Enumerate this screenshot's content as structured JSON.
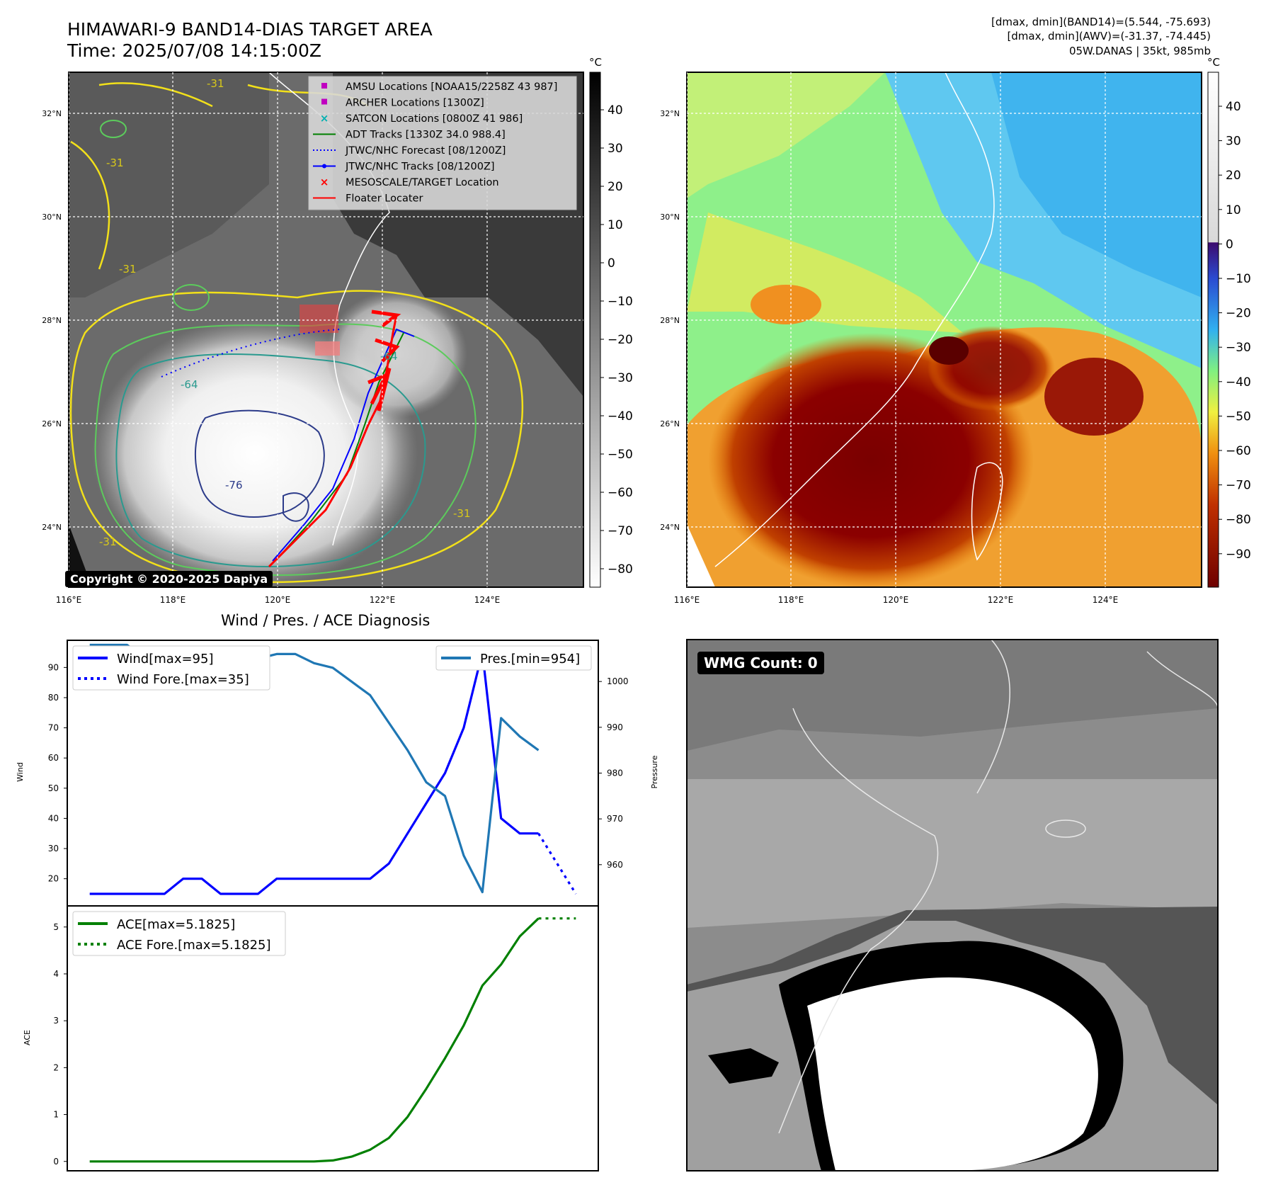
{
  "header": {
    "title_line1": "HIMAWARI-9 BAND14-DIAS TARGET AREA",
    "title_line2": "Time: 2025/07/08 14:15:00Z",
    "stat_line1": "[dmax, dmin](BAND14)=(5.544, -75.693)",
    "stat_line2": "[dmax, dmin](AWV)=(-31.37, -74.445)",
    "stat_line3": "05W.DANAS | 35kt, 985mb"
  },
  "map": {
    "lat_labels": [
      "32°N",
      "30°N",
      "28°N",
      "26°N",
      "24°N"
    ],
    "lon_labels": [
      "116°E",
      "118°E",
      "120°E",
      "122°E",
      "124°E"
    ],
    "copyright": "Copyright © 2020-2025 Dapiya",
    "contour_labels": [
      "-31",
      "-31",
      "-31",
      "-64",
      "-64",
      "-76",
      "-31",
      "-31"
    ],
    "legend": [
      {
        "label": "AMSU Locations [NOAA15/2258Z 43 987]",
        "marker": "square",
        "color": "#c000c0"
      },
      {
        "label": "ARCHER Locations [1300Z]",
        "marker": "square",
        "color": "#c000c0"
      },
      {
        "label": "SATCON Locations [0800Z 41 986]",
        "marker": "x",
        "color": "#00b0b0"
      },
      {
        "label": "ADT Tracks [1330Z 34.0 988.4]",
        "marker": "line",
        "color": "#008000"
      },
      {
        "label": "JTWC/NHC Forecast [08/1200Z]",
        "marker": "dotted",
        "color": "#0000ff"
      },
      {
        "label": "JTWC/NHC Tracks [08/1200Z]",
        "marker": "line-dot",
        "color": "#0000ff"
      },
      {
        "label": "MESOSCALE/TARGET Location",
        "marker": "x",
        "color": "#ff0000"
      },
      {
        "label": "Floater Locater",
        "marker": "line",
        "color": "#ff0000"
      }
    ]
  },
  "colorbar_left": {
    "unit": "°C",
    "ticks": [
      "40",
      "30",
      "20",
      "10",
      "0",
      "−10",
      "−20",
      "−30",
      "−40",
      "−50",
      "−60",
      "−70",
      "−80"
    ]
  },
  "colorbar_right": {
    "unit": "°C",
    "ticks": [
      "40",
      "30",
      "20",
      "10",
      "0",
      "−10",
      "−20",
      "−30",
      "−40",
      "−50",
      "−60",
      "−70",
      "−80",
      "−90"
    ]
  },
  "diagnosis": {
    "title": "Wind / Pres. / ACE Diagnosis",
    "wind_label": "Wind",
    "pres_label": "Pressure",
    "ace_label": "ACE",
    "wind_legend": [
      "Wind[max=95]",
      "Wind Fore.[max=35]"
    ],
    "pres_legend": [
      "Pres.[min=954]"
    ],
    "ace_legend": [
      "ACE[max=5.1825]",
      "ACE Fore.[max=5.1825]"
    ]
  },
  "wmg": {
    "label": "WMG Count: 0"
  },
  "chart_data": [
    {
      "type": "line",
      "title": "Wind / Pres. / ACE Diagnosis",
      "ylabel": "Wind",
      "ylim": [
        11,
        99
      ],
      "yticks": [
        20,
        30,
        40,
        50,
        60,
        70,
        80,
        90
      ],
      "series": [
        {
          "name": "Wind[max=95]",
          "style": "solid",
          "color": "#0000ff",
          "x": [
            0,
            1,
            2,
            3,
            4,
            5,
            6,
            7,
            8,
            9,
            10,
            11,
            12,
            13,
            14,
            15,
            16,
            17,
            18,
            19,
            20,
            21,
            22,
            23,
            24
          ],
          "values": [
            15,
            15,
            15,
            15,
            15,
            20,
            20,
            15,
            15,
            15,
            20,
            20,
            20,
            20,
            20,
            20,
            25,
            35,
            45,
            55,
            70,
            95,
            40,
            35,
            35
          ]
        },
        {
          "name": "Wind Fore.[max=35]",
          "style": "dotted",
          "color": "#0000ff",
          "x": [
            24,
            26
          ],
          "values": [
            35,
            15
          ]
        }
      ]
    },
    {
      "type": "line",
      "ylabel": "Pressure",
      "ylim": [
        951,
        1009
      ],
      "yticks": [
        960,
        970,
        980,
        990,
        1000
      ],
      "series": [
        {
          "name": "Pres.[min=954]",
          "style": "solid",
          "color": "#1f77b4",
          "x": [
            0,
            1,
            2,
            3,
            4,
            5,
            6,
            7,
            8,
            9,
            10,
            11,
            12,
            13,
            14,
            15,
            16,
            17,
            18,
            19,
            20,
            21,
            22,
            23,
            24
          ],
          "values": [
            1008,
            1008,
            1008,
            1005,
            1005,
            1004,
            1005,
            1005,
            1006,
            1005,
            1006,
            1006,
            1004,
            1003,
            1000,
            997,
            991,
            985,
            978,
            975,
            962,
            954,
            992,
            988,
            985
          ]
        }
      ]
    },
    {
      "type": "line",
      "ylabel": "ACE",
      "ylim": [
        -0.2,
        5.45
      ],
      "yticks": [
        0,
        1,
        2,
        3,
        4,
        5
      ],
      "series": [
        {
          "name": "ACE[max=5.1825]",
          "style": "solid",
          "color": "#008000",
          "x": [
            0,
            1,
            2,
            3,
            4,
            5,
            6,
            7,
            8,
            9,
            10,
            11,
            12,
            13,
            14,
            15,
            16,
            17,
            18,
            19,
            20,
            21,
            22,
            23,
            24
          ],
          "values": [
            0,
            0,
            0,
            0,
            0,
            0,
            0,
            0,
            0,
            0,
            0,
            0,
            0,
            0.02,
            0.1,
            0.25,
            0.5,
            0.95,
            1.55,
            2.2,
            2.9,
            3.75,
            4.2,
            4.8,
            5.1825
          ]
        },
        {
          "name": "ACE Fore.[max=5.1825]",
          "style": "dotted",
          "color": "#008000",
          "x": [
            24,
            26
          ],
          "values": [
            5.1825,
            5.1825
          ]
        }
      ]
    }
  ]
}
